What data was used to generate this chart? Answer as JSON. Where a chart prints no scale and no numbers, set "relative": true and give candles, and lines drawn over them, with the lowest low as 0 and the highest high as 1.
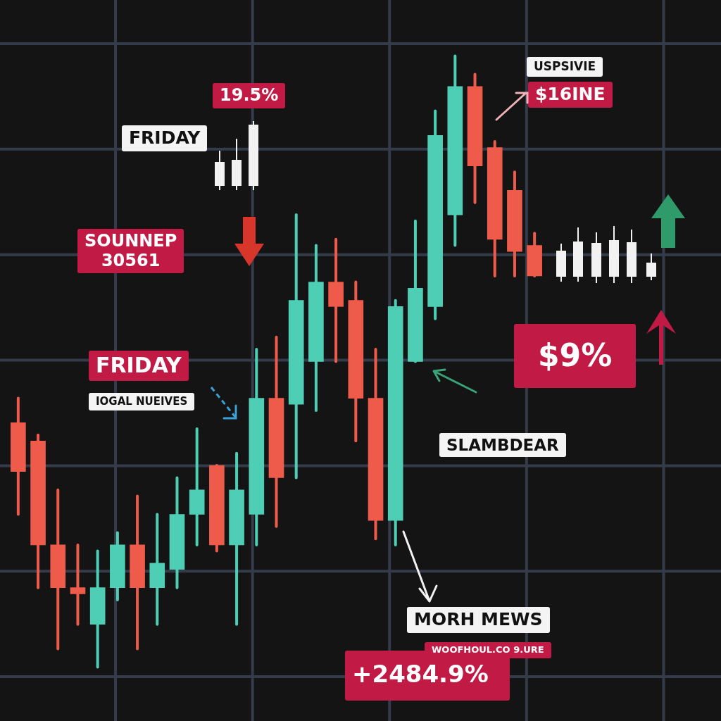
{
  "chart_data": {
    "type": "candlestick",
    "relative": true,
    "grid": true,
    "categories": [
      null,
      null,
      null,
      null,
      null,
      null,
      null,
      null,
      null,
      null,
      null,
      null,
      null,
      null,
      null,
      null,
      null,
      null,
      null,
      null,
      null,
      null,
      null,
      null,
      null,
      null,
      null
    ],
    "ohlc": [
      [
        0.4,
        0.44,
        0.25,
        0.32
      ],
      [
        0.37,
        0.38,
        0.13,
        0.2
      ],
      [
        0.2,
        0.29,
        0.03,
        0.13
      ],
      [
        0.13,
        0.2,
        0.07,
        0.12
      ],
      [
        0.07,
        0.19,
        0,
        0.13
      ],
      [
        0.13,
        0.22,
        0.11,
        0.2
      ],
      [
        0.2,
        0.28,
        0.03,
        0.13
      ],
      [
        0.13,
        0.25,
        0.07,
        0.17
      ],
      [
        0.16,
        0.31,
        0.13,
        0.25
      ],
      [
        0.25,
        0.39,
        0.2,
        0.29
      ],
      [
        0.33,
        0.33,
        0.19,
        0.2
      ],
      [
        0.2,
        0.35,
        0.07,
        0.29
      ],
      [
        0.25,
        0.52,
        0.2,
        0.44
      ],
      [
        0.44,
        0.54,
        0.23,
        0.31
      ],
      [
        0.43,
        0.74,
        0.31,
        0.6
      ],
      [
        0.5,
        0.69,
        0.42,
        0.63
      ],
      [
        0.63,
        0.7,
        0.5,
        0.59
      ],
      [
        0.6,
        0.63,
        0.37,
        0.44
      ],
      [
        0.44,
        0.52,
        0.21,
        0.24
      ],
      [
        0.24,
        0.6,
        0.2,
        0.59
      ],
      [
        0.5,
        0.73,
        0.5,
        0.62
      ],
      [
        0.59,
        0.91,
        0.57,
        0.87
      ],
      [
        0.74,
        1,
        0.69,
        0.95
      ],
      [
        0.95,
        0.97,
        0.76,
        0.82
      ],
      [
        0.85,
        0.86,
        0.64,
        0.7
      ],
      [
        0.78,
        0.81,
        0.64,
        0.68
      ],
      [
        0.69,
        0.71,
        0.64,
        0.64
      ]
    ],
    "colors": [
      "#ef5b4b",
      "#ef5b4b",
      "#ef5b4b",
      "#ef5b4b",
      "#4ecfb5",
      "#4ecfb5",
      "#ef5b4b",
      "#4ecfb5",
      "#4ecfb5",
      "#4ecfb5",
      "#ef5b4b",
      "#4ecfb5",
      "#4ecfb5",
      "#ef5b4b",
      "#4ecfb5",
      "#4ecfb5",
      "#ef5b4b",
      "#ef5b4b",
      "#ef5b4b",
      "#4ecfb5",
      "#4ecfb5",
      "#4ecfb5",
      "#4ecfb5",
      "#ef5b4b",
      "#ef5b4b",
      "#ef5b4b",
      "#ef5b4b"
    ],
    "annotations": [
      "19.5%",
      "FRIDAY",
      "SOUNNEP\n30561",
      "FRIDAY",
      "IOGAL NUEIVES",
      "USPSIVIE",
      "$16INE",
      "$9%",
      "SLAMBDEAR",
      "MORH MEWS",
      "WOOFHOUL.CO 9.URE",
      "+2484.9%"
    ]
  }
}
